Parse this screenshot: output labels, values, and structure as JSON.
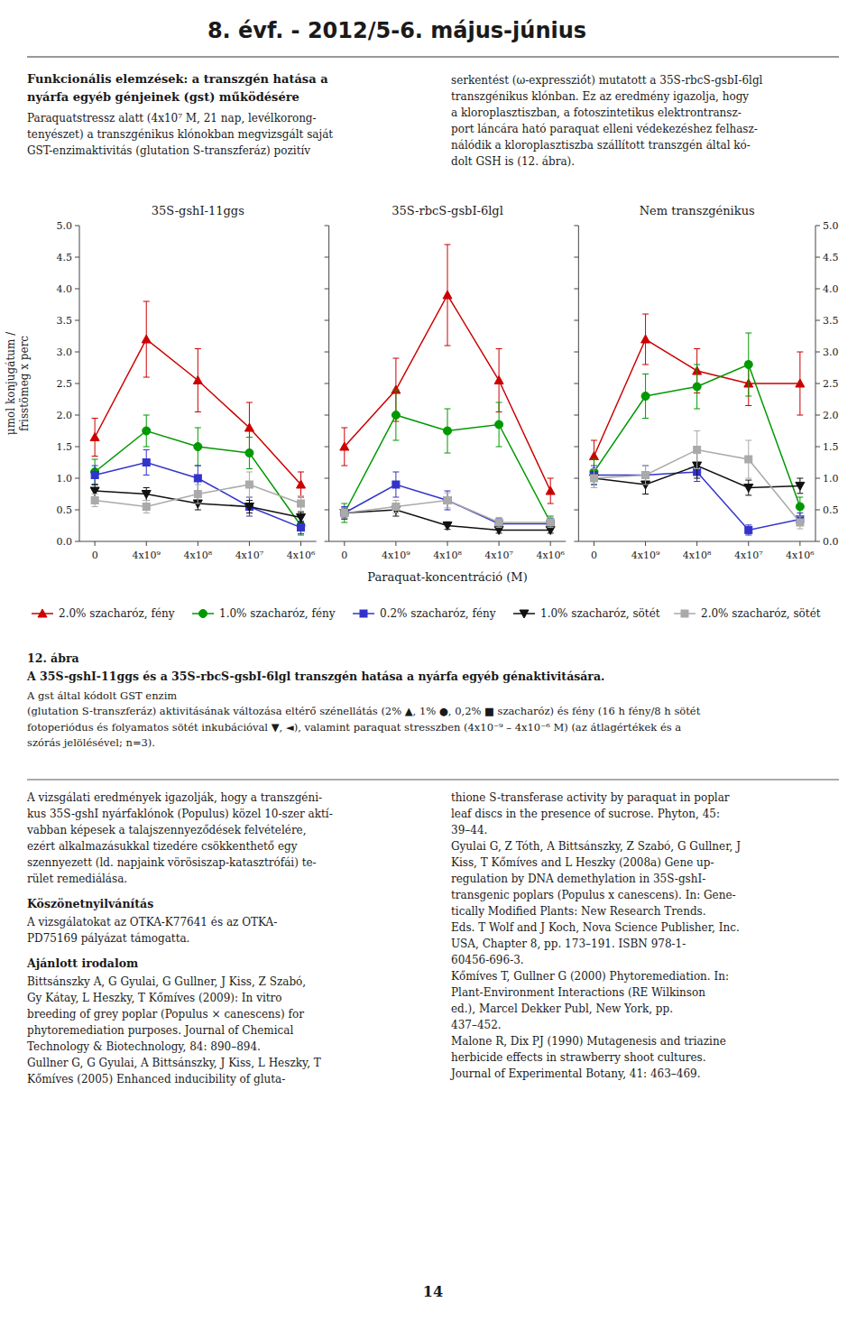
{
  "chart_data": [
    {
      "type": "line",
      "title": "35S-gshI-11ggs",
      "ylabel": "μmol konjugátum /\nfrisstömeg x perc",
      "categories": [
        "0",
        "4x10⁹",
        "4x10⁸",
        "4x10⁷",
        "4x10⁶"
      ],
      "ylim": [
        0,
        5.0
      ],
      "yticks": [
        {
          "value": 0.0,
          "label": "0.0"
        },
        0.5,
        {
          "value": 1.0,
          "label": "1.0"
        },
        1.5,
        {
          "value": 2.0,
          "label": "2.0"
        },
        2.5,
        {
          "value": 3.0,
          "label": "3.0"
        },
        3.5,
        {
          "value": 4.0,
          "label": "4.0"
        },
        4.5,
        {
          "value": 5.0,
          "label": "5.0"
        }
      ],
      "grid": false,
      "series": [
        {
          "color": "#cc0000",
          "marker": "triangle-up",
          "values": [
            1.65,
            3.2,
            2.55,
            1.8,
            0.9
          ],
          "errors": [
            0.3,
            0.6,
            0.5,
            0.4,
            0.2
          ]
        },
        {
          "color": "#009900",
          "marker": "circle",
          "values": [
            1.1,
            1.75,
            1.5,
            1.4,
            0.25
          ],
          "errors": [
            0.2,
            0.25,
            0.3,
            0.25,
            0.15
          ]
        },
        {
          "color": "#3333cc",
          "marker": "square",
          "values": [
            1.05,
            1.25,
            1.0,
            0.55,
            0.22
          ],
          "errors": [
            0.15,
            0.2,
            0.2,
            0.15,
            0.1
          ]
        },
        {
          "color": "#111111",
          "marker": "triangle-down",
          "values": [
            0.8,
            0.75,
            0.6,
            0.55,
            0.38
          ],
          "errors": [
            0.1,
            0.1,
            0.1,
            0.1,
            0.08
          ]
        },
        {
          "color": "#aaaaaa",
          "marker": "square",
          "values": [
            0.65,
            0.55,
            0.75,
            0.9,
            0.6
          ],
          "errors": [
            0.1,
            0.1,
            0.15,
            0.2,
            0.12
          ]
        }
      ],
      "annotations": [
        "8. évf. - 2012/5-6. május-június",
        "Funkcionális elemzések: a transzgén hatása a\nnyárfa egyéb génjeinek (gst) működésére",
        "Paraquatstressz alatt (4x10⁷ M, 21 nap, levélkorong-\ntenyészet) a transzgénikus klónokban megvizsgált saját\nGST-enzimaktivitás (glutation S-transzferáz) pozitív",
        "serkentést (ω-expresszió́t) mutatott a 35S-rbcS-gsbI-6lgl\ntranszgénikus klónban. Ez az eredmény igazolja, hogy\na kloroplasztiszban, a fotoszintetikus elektrontransz-\nport láncára ható paraquat elleni védekezéshez felhasz-\nnálódik a kloroplasztiszba szállított transzgén által kó-\ndolt GSH is (12. ábra).",
        "12. ábra",
        "A 35S-gshI-11ggs és a 35S-rbcS-gsbI-6lgl transzgén hatása a nyárfa egyéb génaktivitására.",
        "A gst által kódolt GST enzim\n(glutation S-transzferáz) aktivitásának változása eltérő szénellátás (2% ▲, 1% ●, 0,2% ■ szacharóz) és fény (16 h fény/8 h sötét\nfotoperiódus és folyamatos sötét inkubációval ▼, ◄), valamint paraquat stresszben (4x10⁻⁹ – 4x10⁻⁶ M) (az átlagértékek és a\nszórás jelölésével; n=3).",
        "A vizsgálati eredmények igazolják, hogy a transzgéni-\nkus 35S-gshI nyárfaklónok (Populus) közel 10-szer aktí-\nvabban képesek a talajszennyeződések felvételére,\nezért alkalmazásukkal tizedére csökkenthető egy\nszennyezett (ld. napjaink vörösiszap-katasztrófái) te-\nrület remediálása.",
        "Köszönetnyilvánítás",
        "A vizsgálatokat az OTKA-K77641 és az OTKA-\nPD75169 pályázat támogatta.",
        "Ajánlott irodalom",
        "Bittsánszky A, G Gyulai, G Gullner, J Kiss, Z Szabó,\nGy Kátay, L Heszky, T Kőmíves (2009): In vitro\nbreeding of grey poplar (Populus × canescens) for\nphytoremediation purposes. Journal of Chemical\nTechnology & Biotechnology, 84: 890–894.\nGullner G, G Gyulai, A Bittsánszky, J Kiss, L Heszky, T\nKőmíves (2005) Enhanced inducibility of gluta-",
        "thione S-transferase activity by paraquat in poplar\nleaf discs in the presence of sucrose. Phyton, 45:\n39–44.\nGyulai G, Z Tóth, A Bittsánszky, Z Szabó, G Gullner, J\nKiss, T Kőmíves and L Heszky (2008a) Gene up-\nregulation by DNA demethylation in 35S-gshI-\ntransgenic poplars (Populus x canescens). In: Gene-\ntically Modified Plants: New Research Trends.\nEds. T Wolf and J Koch, Nova Science Publisher, Inc.\nUSA, Chapter 8, pp. 173–191. ISBN 978-1-\n60456-696-3.\nKőmíves T, Gullner G (2000) Phytoremediation. In:\nPlant-Environment Interactions (RE Wilkinson\ned.), Marcel Dekker Publ, New York, pp.\n437–452.\nMalone R, Dix PJ (1990) Mutagenesis and triazine\nherbicide effects in strawberry shoot cultures.\nJournal of Experimental Botany, 41: 463–469.",
        "14"
      ]
    },
    {
      "type": "line",
      "title": "35S-rbcS-gsbI-6lgl",
      "xlabel": "Paraquat-koncentráció (M)",
      "categories": [
        "0",
        "4x10⁹",
        "4x10⁸",
        "4x10⁷",
        "4x10⁶"
      ],
      "ylim": [
        0,
        5.0
      ],
      "yticks": [
        {
          "value": 0.0,
          "label": "0.0"
        },
        0.5,
        {
          "value": 1.0,
          "label": "1.0"
        },
        1.5,
        {
          "value": 2.0,
          "label": "2.0"
        },
        2.5,
        {
          "value": 3.0,
          "label": "3.0"
        },
        3.5,
        {
          "value": 4.0,
          "label": "4.0"
        },
        4.5,
        {
          "value": 5.0,
          "label": "5.0"
        }
      ],
      "tick_labels": "x",
      "grid": false,
      "legend": "bottom",
      "series": [
        {
          "name": "2.0% szacharóz, fény",
          "color": "#cc0000",
          "marker": "triangle-up",
          "values": [
            1.5,
            2.4,
            3.9,
            2.55,
            0.8
          ],
          "errors": [
            0.3,
            0.5,
            0.8,
            0.5,
            0.2
          ]
        },
        {
          "name": "1.0% szacharóz, fény",
          "color": "#009900",
          "marker": "circle",
          "values": [
            0.45,
            2.0,
            1.75,
            1.85,
            0.3
          ],
          "errors": [
            0.15,
            0.4,
            0.35,
            0.35,
            0.1
          ]
        },
        {
          "name": "0.2% szacharóz, fény",
          "color": "#3333cc",
          "marker": "square",
          "values": [
            0.45,
            0.9,
            0.65,
            0.28,
            0.28
          ],
          "errors": [
            0.1,
            0.2,
            0.15,
            0.08,
            0.08
          ]
        },
        {
          "name": "1.0% szacharóz, sötét",
          "color": "#111111",
          "marker": "triangle-down",
          "values": [
            0.45,
            0.5,
            0.25,
            0.18,
            0.18
          ],
          "errors": [
            0.08,
            0.1,
            0.06,
            0.05,
            0.05
          ]
        },
        {
          "name": "2.0% szacharóz, sötét",
          "color": "#aaaaaa",
          "marker": "square",
          "values": [
            0.45,
            0.55,
            0.65,
            0.3,
            0.3
          ],
          "errors": [
            0.08,
            0.1,
            0.12,
            0.08,
            0.08
          ]
        }
      ]
    },
    {
      "type": "line",
      "title": "Nem transzgénikus",
      "categories": [
        "0",
        "4x10⁹",
        "4x10⁸",
        "4x10⁷",
        "4x10⁶"
      ],
      "ylim": [
        0,
        5.0
      ],
      "yticks": [
        {
          "value": 0.0,
          "label": "0.0"
        },
        0.5,
        {
          "value": 1.0,
          "label": "1.0"
        },
        1.5,
        {
          "value": 2.0,
          "label": "2.0"
        },
        2.5,
        {
          "value": 3.0,
          "label": "3.0"
        },
        3.5,
        {
          "value": 4.0,
          "label": "4.0"
        },
        4.5,
        {
          "value": 5.0,
          "label": "5.0"
        }
      ],
      "y2lim": [
        0,
        5.0
      ],
      "y2ticks": [
        {
          "value": 0.0,
          "label": "0.0"
        },
        0.5,
        {
          "value": 1.0,
          "label": "1.0"
        },
        1.5,
        {
          "value": 2.0,
          "label": "2.0"
        },
        2.5,
        {
          "value": 3.0,
          "label": "3.0"
        },
        3.5,
        {
          "value": 4.0,
          "label": "4.0"
        },
        4.5,
        {
          "value": 5.0,
          "label": "5.0"
        }
      ],
      "tick_labels": "x",
      "grid": false,
      "series": [
        {
          "color": "#cc0000",
          "marker": "triangle-up",
          "values": [
            1.35,
            3.2,
            2.7,
            2.5,
            2.5
          ],
          "errors": [
            0.25,
            0.4,
            0.35,
            0.35,
            0.5
          ]
        },
        {
          "color": "#009900",
          "marker": "circle",
          "values": [
            1.1,
            2.3,
            2.45,
            2.8,
            0.55
          ],
          "errors": [
            0.2,
            0.35,
            0.35,
            0.5,
            0.15
          ]
        },
        {
          "color": "#3333cc",
          "marker": "square",
          "values": [
            1.05,
            1.05,
            1.1,
            0.18,
            0.35
          ],
          "errors": [
            0.15,
            0.15,
            0.15,
            0.08,
            0.1
          ]
        },
        {
          "color": "#111111",
          "marker": "triangle-down",
          "values": [
            1.0,
            0.9,
            1.2,
            0.85,
            0.88
          ],
          "errors": [
            0.15,
            0.15,
            0.2,
            0.12,
            0.12
          ]
        },
        {
          "color": "#aaaaaa",
          "marker": "square",
          "values": [
            1.0,
            1.05,
            1.45,
            1.3,
            0.3
          ],
          "errors": [
            0.15,
            0.15,
            0.3,
            0.3,
            0.1
          ]
        }
      ]
    }
  ]
}
